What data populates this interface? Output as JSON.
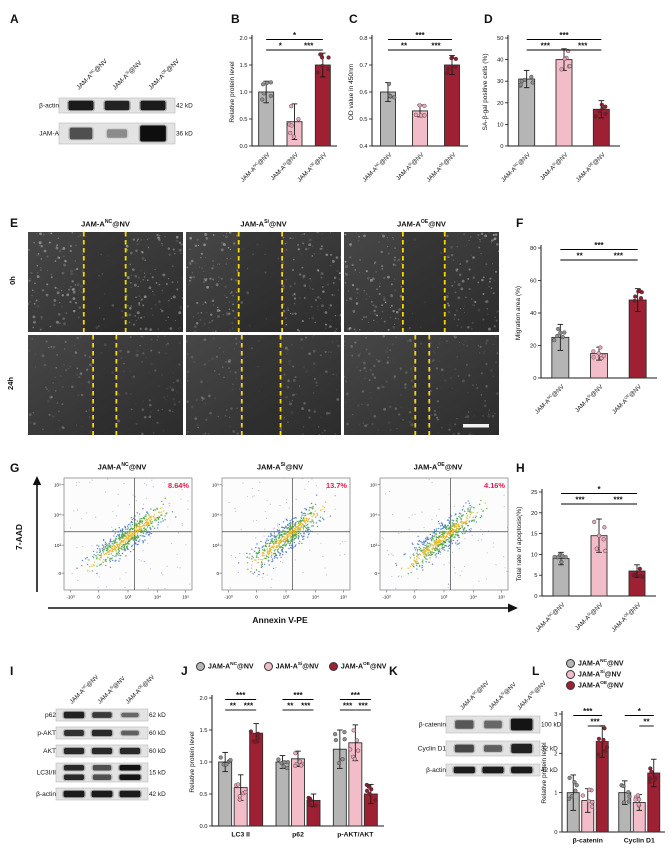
{
  "panels": {
    "A": "A",
    "B": "B",
    "C": "C",
    "D": "D",
    "E": "E",
    "F": "F",
    "G": "G",
    "H": "H",
    "I": "I",
    "J": "J",
    "K": "K",
    "L": "L"
  },
  "colors": {
    "flow_pct": "#e8174b",
    "dash_yellow": "#f7d708",
    "axis": "#1a1a1a"
  },
  "groups": [
    {
      "id": "nc",
      "label": "JAM-A^{NC}@NV",
      "bar": "#b5b5b5",
      "dot": "#8a8a8a"
    },
    {
      "id": "si",
      "label": "JAM-A^{Si}@NV",
      "bar": "#f2bcc9",
      "dot": "#e9a3b6"
    },
    {
      "id": "oe",
      "label": "JAM-A^{OE}@NV",
      "bar": "#9e2033",
      "dot": "#871527"
    }
  ],
  "western_blots": {
    "A": {
      "rows": [
        {
          "protein": "β-actin",
          "kd": "42 kD",
          "bands": [
            0.9,
            0.85,
            0.9
          ]
        },
        {
          "protein": "JAM-A",
          "kd": "36 kD",
          "bands": [
            0.55,
            0.2,
            1.0
          ]
        }
      ]
    },
    "I": {
      "rows": [
        {
          "protein": "p62",
          "kd": "62 kD",
          "bands": [
            0.85,
            0.7,
            0.4
          ]
        },
        {
          "protein": "p-AKT",
          "kd": "60 kD",
          "bands": [
            0.75,
            0.8,
            0.45
          ]
        },
        {
          "protein": "AKT",
          "kd": "60 kD",
          "bands": [
            0.8,
            0.8,
            0.8
          ]
        },
        {
          "protein": "LC3I/II",
          "kd": "15 kD",
          "bands": [
            0.8,
            0.55,
            0.95
          ],
          "double": true
        },
        {
          "protein": "β-actin",
          "kd": "42 kD",
          "bands": [
            0.9,
            0.9,
            0.9
          ]
        }
      ]
    },
    "K": {
      "rows": [
        {
          "protein": "β-catenin",
          "kd": "100 kD",
          "bands": [
            0.5,
            0.4,
            0.95
          ]
        },
        {
          "protein": "Cyclin D1",
          "kd": "32 kD",
          "bands": [
            0.6,
            0.45,
            0.85
          ]
        },
        {
          "protein": "β-actin",
          "kd": "42 kD",
          "bands": [
            0.9,
            0.9,
            0.9
          ]
        }
      ]
    }
  },
  "wound": {
    "row_labels": [
      "0h",
      "24h"
    ],
    "images": [
      [
        {
          "gap": [
            0.36,
            0.63
          ]
        },
        {
          "gap": [
            0.34,
            0.62
          ]
        },
        {
          "gap": [
            0.38,
            0.65
          ]
        }
      ],
      [
        {
          "gap": [
            0.42,
            0.57
          ]
        },
        {
          "gap": [
            0.36,
            0.61
          ]
        },
        {
          "gap": [
            0.46,
            0.55
          ],
          "scalebar": true
        }
      ]
    ]
  },
  "flow": {
    "plots": [
      {
        "pct": "8.64%"
      },
      {
        "pct": "13.7%"
      },
      {
        "pct": "4.16%"
      }
    ],
    "yticks": [
      "10⁵",
      "10⁴",
      "10³",
      "0"
    ],
    "xticks": [
      "-10³",
      "0",
      "10³",
      "10⁴",
      "10⁵"
    ],
    "xlabel": "Annexin V-PE",
    "ylabel": "7-AAD"
  },
  "chart_data": [
    {
      "id": "B",
      "type": "bar",
      "ylabel": "Relative protein level",
      "ylim": [
        0,
        2
      ],
      "yticks": [
        "0.0",
        "0.5",
        "1.0",
        "1.5",
        "2.0"
      ],
      "categories": [
        "JAM-A^{NC}@NV",
        "JAM-A^{Si}@NV",
        "JAM-A^{OE}@NV"
      ],
      "values": [
        1.0,
        0.45,
        1.5
      ],
      "errors": [
        0.2,
        0.33,
        0.22
      ],
      "sig": [
        {
          "a": 0,
          "b": 2,
          "row": 1,
          "stars": "*"
        },
        {
          "a": 0,
          "b": 1,
          "row": 0,
          "stars": "*"
        },
        {
          "a": 1,
          "b": 2,
          "row": 0,
          "stars": "***"
        }
      ]
    },
    {
      "id": "C",
      "type": "bar",
      "ylabel": "OD value in 450nm",
      "ylim": [
        0.4,
        0.8
      ],
      "yticks": [
        "0.4",
        "0.5",
        "0.6",
        "0.7",
        "0.8"
      ],
      "categories": [
        "JAM-A^{NC}@NV",
        "JAM-A^{Si}@NV",
        "JAM-A^{OE}@NV"
      ],
      "values": [
        0.6,
        0.53,
        0.7
      ],
      "errors": [
        0.035,
        0.022,
        0.035
      ],
      "sig": [
        {
          "a": 0,
          "b": 2,
          "row": 1,
          "stars": "***"
        },
        {
          "a": 0,
          "b": 1,
          "row": 0,
          "stars": "**"
        },
        {
          "a": 1,
          "b": 2,
          "row": 0,
          "stars": "***"
        }
      ]
    },
    {
      "id": "D",
      "type": "bar",
      "ylabel": "SA-β-gal positive cells (%)",
      "ylim": [
        0,
        50
      ],
      "yticks": [
        "0",
        "10",
        "20",
        "30",
        "40",
        "50"
      ],
      "categories": [
        "JAM-A^{NC}@NV",
        "JAM-A^{Si}@NV",
        "JAM-A^{OE}@NV"
      ],
      "values": [
        31,
        40,
        17
      ],
      "errors": [
        4,
        5,
        4
      ],
      "sig": [
        {
          "a": 0,
          "b": 2,
          "row": 1,
          "stars": "***"
        },
        {
          "a": 0,
          "b": 1,
          "row": 0,
          "stars": "***"
        },
        {
          "a": 1,
          "b": 2,
          "row": 0,
          "stars": "***"
        }
      ]
    },
    {
      "id": "F",
      "type": "bar",
      "ylabel": "Migration area (%)",
      "ylim": [
        0,
        80
      ],
      "yticks": [
        "0",
        "20",
        "40",
        "60",
        "80"
      ],
      "categories": [
        "JAM-A^{NC}@NV",
        "JAM-A^{Si}@NV",
        "JAM-A^{OE}@NV"
      ],
      "values": [
        25,
        15,
        48
      ],
      "errors": [
        8,
        4,
        7
      ],
      "sig": [
        {
          "a": 0,
          "b": 2,
          "row": 1,
          "stars": "***"
        },
        {
          "a": 0,
          "b": 1,
          "row": 0,
          "stars": "**"
        },
        {
          "a": 1,
          "b": 2,
          "row": 0,
          "stars": "***"
        }
      ]
    },
    {
      "id": "H",
      "type": "bar",
      "ylabel": "Total rate of apoptosis(%)",
      "ylim": [
        0,
        25
      ],
      "yticks": [
        "0",
        "5",
        "10",
        "15",
        "20",
        "25"
      ],
      "categories": [
        "JAM-A^{NC}@NV",
        "JAM-A^{Si}@NV",
        "JAM-A^{OE}@NV"
      ],
      "values": [
        9,
        14.5,
        6
      ],
      "errors": [
        1.5,
        4,
        1.5
      ],
      "sig": [
        {
          "a": 0,
          "b": 2,
          "row": 1,
          "stars": "*"
        },
        {
          "a": 0,
          "b": 1,
          "row": 0,
          "stars": "***"
        },
        {
          "a": 1,
          "b": 2,
          "row": 0,
          "stars": "***"
        }
      ]
    },
    {
      "id": "J",
      "type": "grouped_bar",
      "ylabel": "Relative protein level",
      "ylim": [
        0,
        2
      ],
      "yticks": [
        "0.0",
        "0.5",
        "1.0",
        "1.5",
        "2.0"
      ],
      "categories": [
        "LC3 II",
        "p62",
        "p-AKT/AKT"
      ],
      "series": [
        {
          "name": "JAM-A^{NC}@NV",
          "values": [
            1.0,
            1.0,
            1.2
          ],
          "errors": [
            0.15,
            0.1,
            0.3
          ]
        },
        {
          "name": "JAM-A^{Si}@NV",
          "values": [
            0.6,
            1.05,
            1.3
          ],
          "errors": [
            0.2,
            0.12,
            0.28
          ]
        },
        {
          "name": "JAM-A^{OE}@NV",
          "values": [
            1.45,
            0.4,
            0.5
          ],
          "errors": [
            0.15,
            0.1,
            0.15
          ]
        }
      ],
      "sig": [
        {
          "cat": 0,
          "a": 0,
          "b": 2,
          "row": 1,
          "stars": "***"
        },
        {
          "cat": 0,
          "a": 0,
          "b": 1,
          "row": 0,
          "stars": "**"
        },
        {
          "cat": 0,
          "a": 1,
          "b": 2,
          "row": 0,
          "stars": "***"
        },
        {
          "cat": 1,
          "a": 0,
          "b": 2,
          "row": 1,
          "stars": "***"
        },
        {
          "cat": 1,
          "a": 0,
          "b": 1,
          "row": 0,
          "stars": "**"
        },
        {
          "cat": 1,
          "a": 1,
          "b": 2,
          "row": 0,
          "stars": "***"
        },
        {
          "cat": 2,
          "a": 0,
          "b": 2,
          "row": 1,
          "stars": "***"
        },
        {
          "cat": 2,
          "a": 0,
          "b": 1,
          "row": 0,
          "stars": "***"
        },
        {
          "cat": 2,
          "a": 1,
          "b": 2,
          "row": 0,
          "stars": "***"
        }
      ]
    },
    {
      "id": "L",
      "type": "grouped_bar",
      "ylabel": "Relative protein level",
      "ylim": [
        0,
        3
      ],
      "yticks": [
        "0",
        "1",
        "2",
        "3"
      ],
      "categories": [
        "β-catenin",
        "Cyclin D1"
      ],
      "series": [
        {
          "name": "JAM-A^{NC}@NV",
          "values": [
            1.0,
            1.0
          ],
          "errors": [
            0.45,
            0.3
          ]
        },
        {
          "name": "JAM-A^{Si}@NV",
          "values": [
            0.8,
            0.75
          ],
          "errors": [
            0.3,
            0.2
          ]
        },
        {
          "name": "JAM-A^{OE}@NV",
          "values": [
            2.3,
            1.5
          ],
          "errors": [
            0.4,
            0.35
          ]
        }
      ],
      "sig": [
        {
          "cat": 0,
          "a": 0,
          "b": 2,
          "row": 1,
          "stars": "***"
        },
        {
          "cat": 0,
          "a": 1,
          "b": 2,
          "row": 0,
          "stars": "***"
        },
        {
          "cat": 1,
          "a": 0,
          "b": 2,
          "row": 1,
          "stars": "*"
        },
        {
          "cat": 1,
          "a": 1,
          "b": 2,
          "row": 0,
          "stars": "**"
        }
      ]
    }
  ]
}
